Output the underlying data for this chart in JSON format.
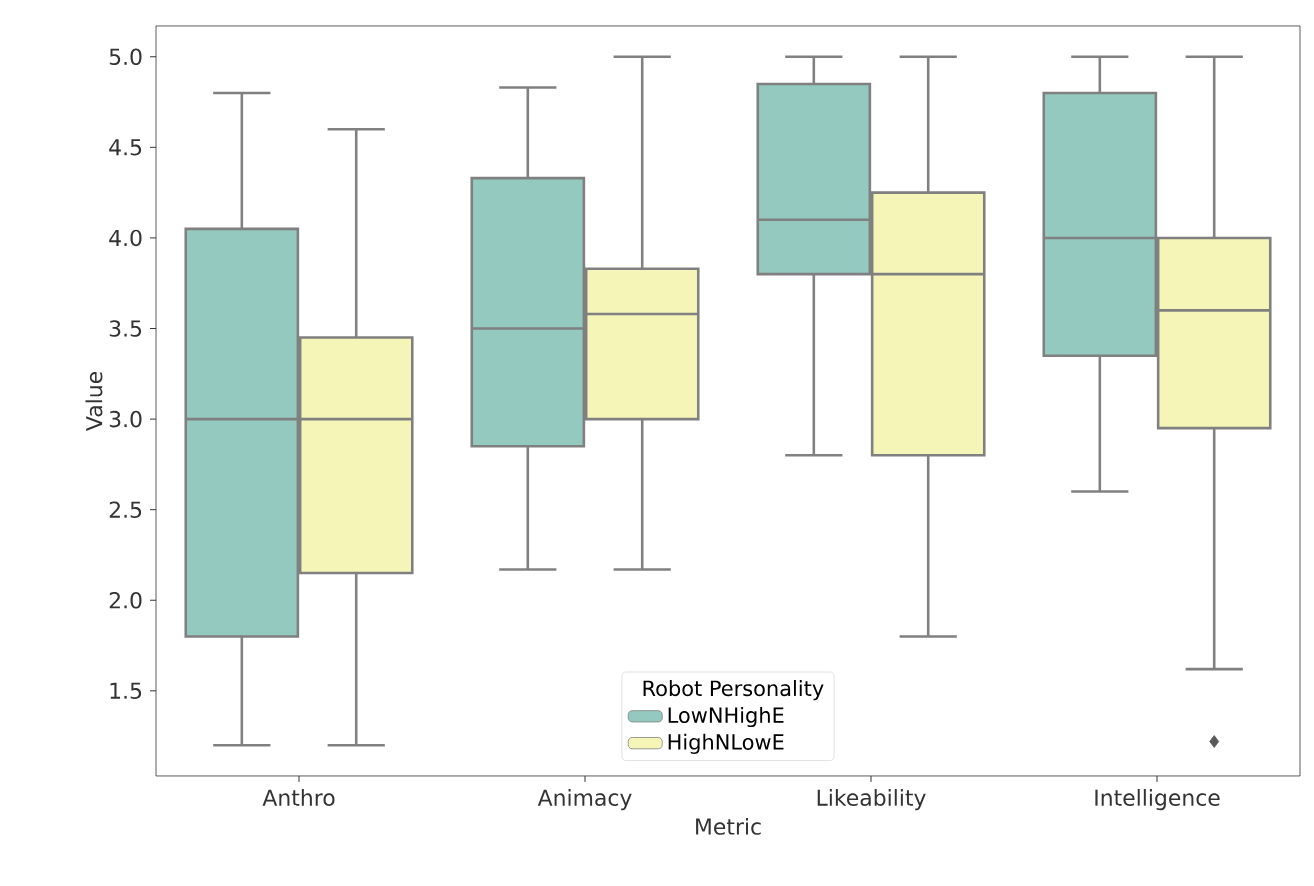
{
  "chart_data": {
    "type": "box",
    "xlabel": "Metric",
    "ylabel": "Value",
    "legend_title": "Robot Personality",
    "legend": "bottom",
    "categories": [
      "Anthro",
      "Animacy",
      "Likeability",
      "Intelligence"
    ],
    "ylim": [
      1.03,
      5.17
    ],
    "yticks": [
      1.5,
      {
        "value": 2,
        "label": "2.0"
      },
      2.5,
      {
        "value": 3,
        "label": "3.0"
      },
      3.5,
      {
        "value": 4,
        "label": "4.0"
      },
      4.5,
      {
        "value": 5,
        "label": "5.0"
      }
    ],
    "series": [
      {
        "name": "LowNHighE",
        "color": "#93c9be",
        "boxes": [
          {
            "low": 1.2,
            "q1": 1.8,
            "median": 3.0,
            "q3": 4.05,
            "high": 4.8
          },
          {
            "low": 2.17,
            "q1": 2.85,
            "median": 3.5,
            "q3": 4.33,
            "high": 4.83
          },
          {
            "low": 2.8,
            "q1": 3.8,
            "median": 4.1,
            "q3": 4.85,
            "high": 5.0
          },
          {
            "low": 2.6,
            "q1": 3.35,
            "median": 4.0,
            "q3": 4.8,
            "high": 5.0
          }
        ]
      },
      {
        "name": "HighNLowE",
        "color": "#f5f5b8",
        "boxes": [
          {
            "low": 1.2,
            "q1": 2.15,
            "median": 3.0,
            "q3": 3.45,
            "high": 4.6
          },
          {
            "low": 2.17,
            "q1": 3.0,
            "median": 3.58,
            "q3": 3.83,
            "high": 5.0
          },
          {
            "low": 1.8,
            "q1": 2.8,
            "median": 3.8,
            "q3": 4.25,
            "high": 5.0
          },
          {
            "low": 1.62,
            "q1": 2.95,
            "median": 3.6,
            "q3": 4.0,
            "high": 5.0,
            "outliers": [
              1.22
            ]
          }
        ]
      }
    ]
  }
}
